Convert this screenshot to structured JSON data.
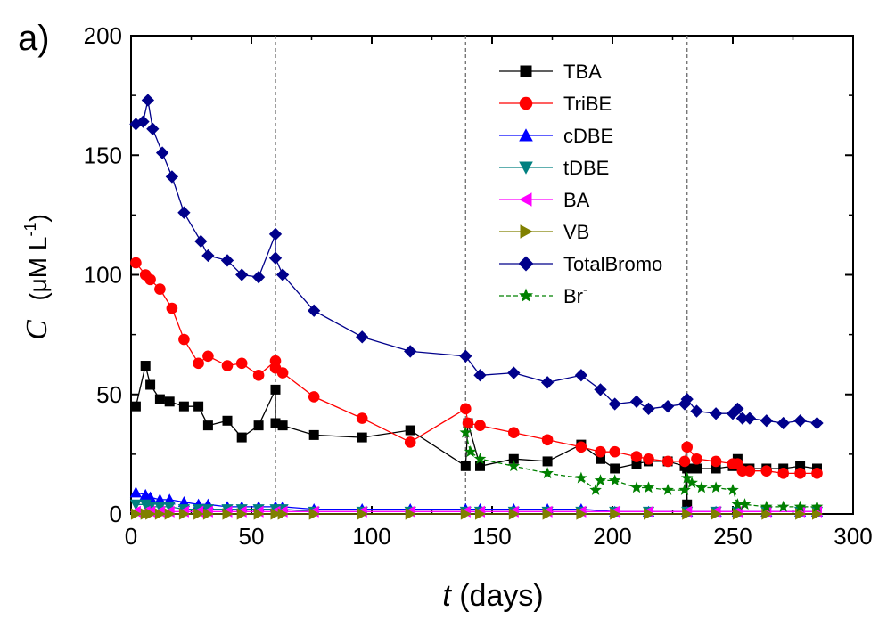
{
  "panel_label": "a)",
  "chart_data": {
    "type": "line",
    "xlabel_var": "t",
    "xlabel_unit": " (days)",
    "ylabel_var": "C",
    "ylabel_unit_pre": "(μM L",
    "ylabel_unit_sup": "-1",
    "ylabel_unit_post": ")",
    "xlim": [
      0,
      300
    ],
    "ylim": [
      0,
      200
    ],
    "x_ticks": [
      0,
      50,
      100,
      150,
      200,
      250,
      300
    ],
    "y_ticks": [
      0,
      50,
      100,
      150,
      200
    ],
    "x_tick_labels": [
      "0",
      "50",
      "100",
      "150",
      "200",
      "250",
      "300"
    ],
    "y_tick_labels": [
      "0",
      "50",
      "100",
      "150",
      "200"
    ],
    "vlines": [
      60,
      139,
      231
    ],
    "legend_position": "top-right",
    "grid": false,
    "series": [
      {
        "name": "TBA",
        "label_main": "TBA",
        "label_sup": "",
        "color": "#000000",
        "marker": "square",
        "dashed": false,
        "points": [
          [
            2,
            45
          ],
          [
            6,
            62
          ],
          [
            8,
            54
          ],
          [
            12,
            48
          ],
          [
            16,
            47
          ],
          [
            22,
            45
          ],
          [
            28,
            45
          ],
          [
            32,
            37
          ],
          [
            40,
            39
          ],
          [
            46,
            32
          ],
          [
            53,
            37
          ],
          [
            60,
            52
          ],
          [
            60,
            38
          ],
          [
            63,
            37
          ],
          [
            76,
            33
          ],
          [
            96,
            32
          ],
          [
            116,
            35
          ],
          [
            139,
            20
          ],
          [
            140,
            38
          ],
          [
            145,
            20
          ],
          [
            159,
            23
          ],
          [
            173,
            22
          ],
          [
            187,
            29
          ],
          [
            195,
            23
          ],
          [
            201,
            19
          ],
          [
            210,
            21
          ],
          [
            215,
            22
          ],
          [
            223,
            22
          ],
          [
            230,
            20
          ],
          [
            231,
            4
          ],
          [
            231,
            19
          ],
          [
            235,
            19
          ],
          [
            243,
            19
          ],
          [
            250,
            20
          ],
          [
            252,
            23
          ],
          [
            254,
            19
          ],
          [
            257,
            19
          ],
          [
            264,
            19
          ],
          [
            271,
            19
          ],
          [
            278,
            20
          ],
          [
            285,
            19
          ]
        ]
      },
      {
        "name": "TriBE",
        "label_main": "TriBE",
        "label_sup": "",
        "color": "#ff0000",
        "marker": "circle",
        "dashed": false,
        "points": [
          [
            2,
            105
          ],
          [
            6,
            100
          ],
          [
            8,
            98
          ],
          [
            12,
            94
          ],
          [
            17,
            86
          ],
          [
            22,
            73
          ],
          [
            28,
            63
          ],
          [
            32,
            66
          ],
          [
            40,
            62
          ],
          [
            46,
            63
          ],
          [
            53,
            58
          ],
          [
            60,
            64
          ],
          [
            60,
            61
          ],
          [
            63,
            59
          ],
          [
            76,
            49
          ],
          [
            96,
            40
          ],
          [
            116,
            30
          ],
          [
            139,
            44
          ],
          [
            140,
            38
          ],
          [
            145,
            37
          ],
          [
            159,
            34
          ],
          [
            173,
            31
          ],
          [
            187,
            28
          ],
          [
            195,
            26
          ],
          [
            201,
            26
          ],
          [
            210,
            24
          ],
          [
            215,
            23
          ],
          [
            223,
            22
          ],
          [
            230,
            22
          ],
          [
            231,
            28
          ],
          [
            235,
            23
          ],
          [
            243,
            22
          ],
          [
            250,
            21
          ],
          [
            252,
            21
          ],
          [
            254,
            18
          ],
          [
            257,
            18
          ],
          [
            264,
            18
          ],
          [
            271,
            17
          ],
          [
            278,
            17
          ],
          [
            285,
            17
          ]
        ]
      },
      {
        "name": "cDBE",
        "label_main": "cDBE",
        "label_sup": "",
        "color": "#0000ff",
        "marker": "triangle-up",
        "dashed": false,
        "points": [
          [
            2,
            9
          ],
          [
            6,
            8
          ],
          [
            8,
            7
          ],
          [
            12,
            6
          ],
          [
            16,
            6
          ],
          [
            22,
            5
          ],
          [
            28,
            4
          ],
          [
            32,
            4
          ],
          [
            40,
            3
          ],
          [
            46,
            3
          ],
          [
            53,
            3
          ],
          [
            60,
            3
          ],
          [
            63,
            3
          ],
          [
            76,
            2
          ],
          [
            96,
            2
          ],
          [
            116,
            2
          ],
          [
            139,
            2
          ],
          [
            145,
            2
          ],
          [
            159,
            2
          ],
          [
            173,
            2
          ],
          [
            187,
            2
          ],
          [
            201,
            1
          ],
          [
            215,
            1
          ],
          [
            231,
            1
          ],
          [
            243,
            1
          ],
          [
            252,
            1
          ],
          [
            264,
            1
          ],
          [
            278,
            1
          ],
          [
            285,
            1
          ]
        ]
      },
      {
        "name": "tDBE",
        "label_main": "tDBE",
        "label_sup": "",
        "color": "#008080",
        "marker": "triangle-down",
        "dashed": false,
        "points": [
          [
            2,
            4
          ],
          [
            6,
            4
          ],
          [
            8,
            3
          ],
          [
            12,
            3
          ],
          [
            16,
            3
          ],
          [
            22,
            2
          ],
          [
            28,
            2
          ],
          [
            32,
            2
          ],
          [
            40,
            2
          ],
          [
            46,
            2
          ],
          [
            53,
            2
          ],
          [
            60,
            2
          ],
          [
            63,
            2
          ],
          [
            76,
            1
          ],
          [
            96,
            1
          ],
          [
            116,
            1
          ],
          [
            139,
            1
          ],
          [
            145,
            1
          ],
          [
            159,
            1
          ],
          [
            173,
            1
          ],
          [
            187,
            1
          ],
          [
            201,
            1
          ],
          [
            215,
            1
          ],
          [
            231,
            1
          ],
          [
            243,
            1
          ],
          [
            252,
            1
          ],
          [
            264,
            1
          ],
          [
            278,
            1
          ],
          [
            285,
            1
          ]
        ]
      },
      {
        "name": "BA",
        "label_main": "BA",
        "label_sup": "",
        "color": "#ff00ff",
        "marker": "triangle-left",
        "dashed": false,
        "points": [
          [
            2,
            1
          ],
          [
            6,
            1
          ],
          [
            8,
            1
          ],
          [
            12,
            1
          ],
          [
            16,
            1
          ],
          [
            22,
            1
          ],
          [
            28,
            1
          ],
          [
            32,
            1
          ],
          [
            40,
            1
          ],
          [
            46,
            1
          ],
          [
            53,
            1
          ],
          [
            60,
            1
          ],
          [
            63,
            1
          ],
          [
            76,
            1
          ],
          [
            96,
            1
          ],
          [
            116,
            1
          ],
          [
            139,
            1
          ],
          [
            145,
            1
          ],
          [
            159,
            1
          ],
          [
            173,
            1
          ],
          [
            187,
            1
          ],
          [
            201,
            1
          ],
          [
            215,
            1
          ],
          [
            231,
            1
          ],
          [
            243,
            1
          ],
          [
            252,
            1
          ],
          [
            264,
            1
          ],
          [
            278,
            1
          ],
          [
            285,
            1
          ]
        ]
      },
      {
        "name": "VB",
        "label_main": "VB",
        "label_sup": "",
        "color": "#808000",
        "marker": "triangle-right",
        "dashed": false,
        "points": [
          [
            2,
            0
          ],
          [
            6,
            0
          ],
          [
            8,
            0
          ],
          [
            12,
            0
          ],
          [
            16,
            0
          ],
          [
            22,
            0
          ],
          [
            28,
            0
          ],
          [
            32,
            0
          ],
          [
            40,
            0
          ],
          [
            46,
            0
          ],
          [
            53,
            0
          ],
          [
            60,
            0
          ],
          [
            63,
            0
          ],
          [
            76,
            0
          ],
          [
            96,
            0
          ],
          [
            116,
            0
          ],
          [
            139,
            0
          ],
          [
            145,
            0
          ],
          [
            159,
            0
          ],
          [
            173,
            0
          ],
          [
            187,
            0
          ],
          [
            201,
            0
          ],
          [
            215,
            0
          ],
          [
            231,
            0
          ],
          [
            243,
            0
          ],
          [
            252,
            0
          ],
          [
            264,
            0
          ],
          [
            278,
            0
          ],
          [
            285,
            0
          ]
        ]
      },
      {
        "name": "TotalBromo",
        "label_main": "TotalBromo",
        "label_sup": "",
        "color": "#00008b",
        "marker": "diamond",
        "dashed": false,
        "points": [
          [
            2,
            163
          ],
          [
            5,
            164
          ],
          [
            7,
            173
          ],
          [
            9,
            161
          ],
          [
            13,
            151
          ],
          [
            17,
            141
          ],
          [
            22,
            126
          ],
          [
            29,
            114
          ],
          [
            32,
            108
          ],
          [
            40,
            106
          ],
          [
            46,
            100
          ],
          [
            53,
            99
          ],
          [
            60,
            117
          ],
          [
            60,
            107
          ],
          [
            63,
            100
          ],
          [
            76,
            85
          ],
          [
            96,
            74
          ],
          [
            116,
            68
          ],
          [
            139,
            66
          ],
          [
            145,
            58
          ],
          [
            159,
            59
          ],
          [
            173,
            55
          ],
          [
            187,
            58
          ],
          [
            195,
            52
          ],
          [
            201,
            46
          ],
          [
            210,
            47
          ],
          [
            215,
            44
          ],
          [
            223,
            45
          ],
          [
            230,
            46
          ],
          [
            231,
            48
          ],
          [
            235,
            43
          ],
          [
            243,
            42
          ],
          [
            250,
            42
          ],
          [
            252,
            44
          ],
          [
            254,
            40
          ],
          [
            257,
            40
          ],
          [
            264,
            39
          ],
          [
            271,
            38
          ],
          [
            278,
            39
          ],
          [
            285,
            38
          ]
        ]
      },
      {
        "name": "Br-",
        "label_main": "Br",
        "label_sup": "-",
        "color": "#008000",
        "marker": "star",
        "dashed": true,
        "points": [
          [
            139,
            34
          ],
          [
            141,
            26
          ],
          [
            145,
            23
          ],
          [
            159,
            20
          ],
          [
            173,
            17
          ],
          [
            187,
            15
          ],
          [
            193,
            10
          ],
          [
            195,
            14
          ],
          [
            201,
            14
          ],
          [
            210,
            11
          ],
          [
            215,
            11
          ],
          [
            223,
            10
          ],
          [
            230,
            10
          ],
          [
            231,
            15
          ],
          [
            233,
            13
          ],
          [
            237,
            11
          ],
          [
            243,
            11
          ],
          [
            250,
            10
          ],
          [
            252,
            4
          ],
          [
            255,
            4
          ],
          [
            264,
            3
          ],
          [
            271,
            3
          ],
          [
            278,
            3
          ],
          [
            285,
            3
          ]
        ]
      }
    ]
  }
}
